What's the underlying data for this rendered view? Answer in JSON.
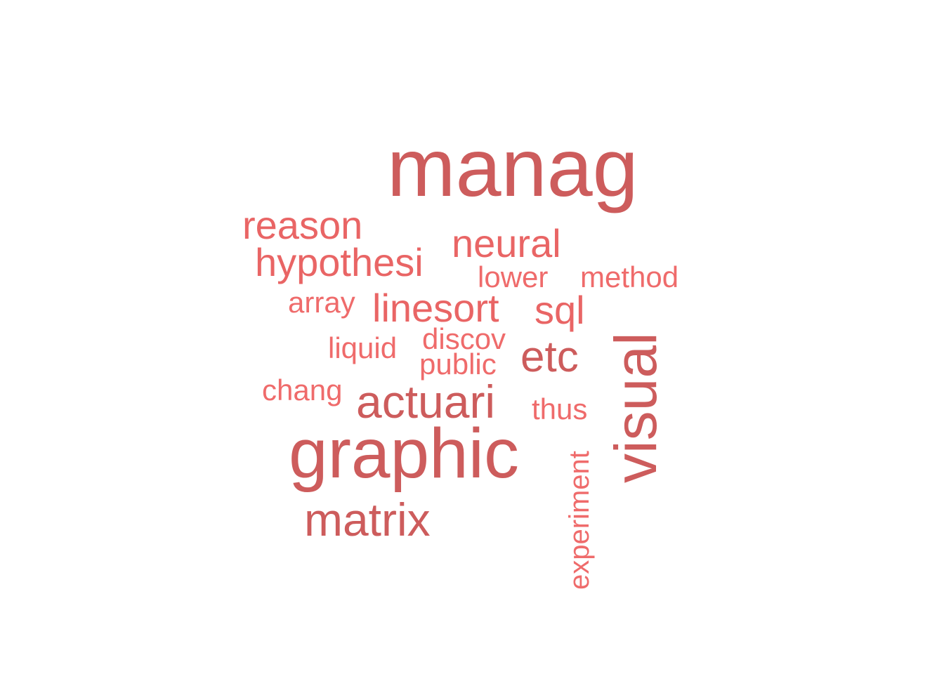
{
  "words": {
    "manag": {
      "text": "manag",
      "color": "#cd5c5c"
    },
    "graphic": {
      "text": "graphic",
      "color": "#cd5c5c"
    },
    "visual": {
      "text": "visual",
      "color": "#cd5c5c"
    },
    "actuari": {
      "text": "actuari",
      "color": "#cd5c5c"
    },
    "matrix": {
      "text": "matrix",
      "color": "#cd5c5c"
    },
    "etc": {
      "text": "etc",
      "color": "#cd5c5c"
    },
    "neural": {
      "text": "neural",
      "color": "#e96565"
    },
    "reason": {
      "text": "reason",
      "color": "#e96565"
    },
    "hypothesi": {
      "text": "hypothesi",
      "color": "#e96565"
    },
    "linesort": {
      "text": "linesort",
      "color": "#e96565"
    },
    "sql": {
      "text": "sql",
      "color": "#e96565"
    },
    "experiment": {
      "text": "experiment",
      "color": "#ef6b6b"
    },
    "method": {
      "text": "method",
      "color": "#ef6b6b"
    },
    "lower": {
      "text": "lower",
      "color": "#ef6b6b"
    },
    "array": {
      "text": "array",
      "color": "#ef6b6b"
    },
    "discov": {
      "text": "discov",
      "color": "#ef6b6b"
    },
    "liquid": {
      "text": "liquid",
      "color": "#ef6b6b"
    },
    "public": {
      "text": "public",
      "color": "#ef6b6b"
    },
    "chang": {
      "text": "chang",
      "color": "#ef6b6b"
    },
    "thus": {
      "text": "thus",
      "color": "#ef6b6b"
    }
  }
}
